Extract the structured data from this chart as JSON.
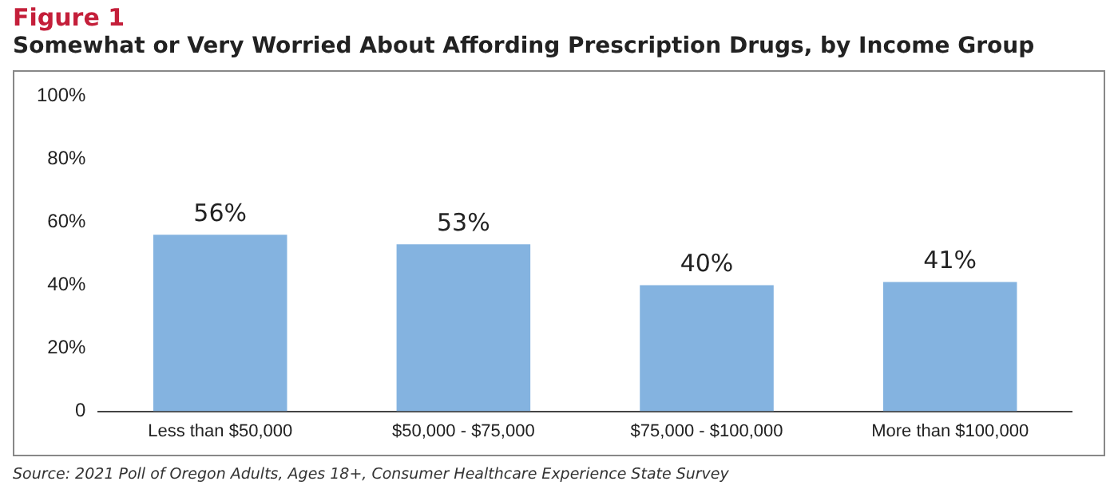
{
  "chart_data": {
    "type": "bar",
    "title": "Figure 1",
    "subtitle": "Somewhat or Very Worried About Affording Prescription Drugs, by Income Group",
    "categories": [
      "Less than $50,000",
      "$50,000 - $75,000",
      "$75,000 - $100,000",
      "More than $100,000"
    ],
    "values": [
      56,
      53,
      40,
      41
    ],
    "color": "#84b3e0",
    "value_labels": [
      "56%",
      "53%",
      "40%",
      "41%"
    ],
    "ylim": [
      0,
      100
    ],
    "yticks": [
      0,
      {
        "value": 20,
        "label": "20%"
      },
      {
        "value": 40,
        "label": "40%"
      },
      {
        "value": 60,
        "label": "60%"
      },
      {
        "value": 80,
        "label": "80%"
      },
      {
        "value": 100,
        "label": "100%"
      }
    ],
    "grid": false,
    "legend": false,
    "annotations": [
      "Source: 2021 Poll of Oregon Adults, Ages 18+, Consumer Healthcare Experience State Survey"
    ]
  }
}
